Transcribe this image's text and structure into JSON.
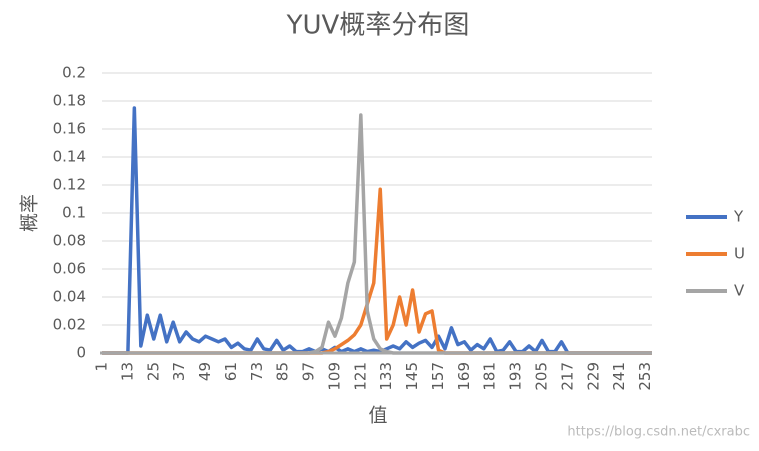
{
  "chart_data": {
    "type": "line",
    "title": "YUV概率分布图",
    "xlabel": "值",
    "ylabel": "概率",
    "x": [
      1,
      4,
      7,
      10,
      13,
      16,
      19,
      22,
      25,
      28,
      31,
      34,
      37,
      40,
      43,
      46,
      49,
      52,
      55,
      58,
      61,
      64,
      67,
      70,
      73,
      76,
      79,
      82,
      85,
      88,
      91,
      94,
      97,
      100,
      103,
      106,
      109,
      112,
      115,
      118,
      121,
      124,
      127,
      130,
      133,
      136,
      139,
      142,
      145,
      148,
      151,
      154,
      157,
      160,
      163,
      166,
      169,
      172,
      175,
      178,
      181,
      184,
      187,
      190,
      193,
      196,
      199,
      202,
      205,
      208,
      211,
      214,
      217,
      220,
      223,
      226,
      229,
      232,
      235,
      238,
      241,
      244,
      247,
      250,
      253,
      256
    ],
    "series": [
      {
        "name": "Y",
        "color": "#4472c4",
        "values": [
          0,
          0,
          0,
          0,
          0,
          0.175,
          0.005,
          0.027,
          0.01,
          0.027,
          0.008,
          0.022,
          0.008,
          0.015,
          0.01,
          0.008,
          0.012,
          0.01,
          0.008,
          0.01,
          0.004,
          0.007,
          0.003,
          0.002,
          0.01,
          0.003,
          0.002,
          0.009,
          0.002,
          0.005,
          0.001,
          0.001,
          0.003,
          0.001,
          0.003,
          0.001,
          0.004,
          0.001,
          0.003,
          0.001,
          0.003,
          0.001,
          0.002,
          0.001,
          0.003,
          0.005,
          0.003,
          0.008,
          0.004,
          0.007,
          0.009,
          0.004,
          0.012,
          0.003,
          0.018,
          0.006,
          0.008,
          0.002,
          0.006,
          0.003,
          0.01,
          0.001,
          0.002,
          0.008,
          0.001,
          0.001,
          0.005,
          0.001,
          0.009,
          0.001,
          0.001,
          0.008,
          0,
          0,
          0,
          0,
          0,
          0,
          0,
          0,
          0,
          0,
          0,
          0,
          0,
          0
        ]
      },
      {
        "name": "U",
        "color": "#ed7d31",
        "values": [
          0,
          0,
          0,
          0,
          0,
          0,
          0,
          0,
          0,
          0,
          0,
          0,
          0,
          0,
          0,
          0,
          0,
          0,
          0,
          0,
          0,
          0,
          0,
          0,
          0,
          0,
          0,
          0,
          0,
          0,
          0,
          0,
          0,
          0,
          0,
          0.001,
          0.003,
          0.006,
          0.009,
          0.013,
          0.02,
          0.035,
          0.05,
          0.117,
          0.01,
          0.02,
          0.04,
          0.02,
          0.045,
          0.015,
          0.028,
          0.03,
          0.002,
          0,
          0,
          0,
          0,
          0,
          0,
          0,
          0,
          0,
          0,
          0,
          0,
          0,
          0,
          0,
          0,
          0,
          0,
          0,
          0,
          0,
          0,
          0,
          0,
          0,
          0,
          0,
          0,
          0,
          0,
          0,
          0,
          0
        ]
      },
      {
        "name": "V",
        "color": "#a5a5a5",
        "values": [
          0,
          0,
          0,
          0,
          0,
          0,
          0,
          0,
          0,
          0,
          0,
          0,
          0,
          0,
          0,
          0,
          0,
          0,
          0,
          0,
          0,
          0,
          0,
          0,
          0,
          0,
          0,
          0,
          0,
          0,
          0,
          0,
          0,
          0.001,
          0.004,
          0.022,
          0.012,
          0.025,
          0.05,
          0.065,
          0.17,
          0.03,
          0.01,
          0.003,
          0.001,
          0,
          0,
          0,
          0,
          0,
          0,
          0,
          0,
          0,
          0,
          0,
          0,
          0,
          0,
          0,
          0,
          0,
          0,
          0,
          0,
          0,
          0,
          0,
          0,
          0,
          0,
          0,
          0,
          0,
          0,
          0,
          0,
          0,
          0,
          0,
          0,
          0,
          0,
          0,
          0,
          0
        ]
      }
    ],
    "xlim": [
      1,
      256
    ],
    "xticks": [
      1,
      13,
      25,
      37,
      49,
      61,
      73,
      85,
      97,
      109,
      121,
      133,
      145,
      157,
      169,
      181,
      193,
      205,
      217,
      229,
      241,
      253
    ],
    "ylim": [
      0,
      0.2
    ],
    "yticks": [
      0,
      0.02,
      0.04,
      0.06,
      0.08,
      0.1,
      0.12,
      0.14,
      0.16,
      0.18,
      0.2
    ],
    "grid": true,
    "legend": "right",
    "watermark": "https://blog.csdn.net/cxrabc"
  }
}
